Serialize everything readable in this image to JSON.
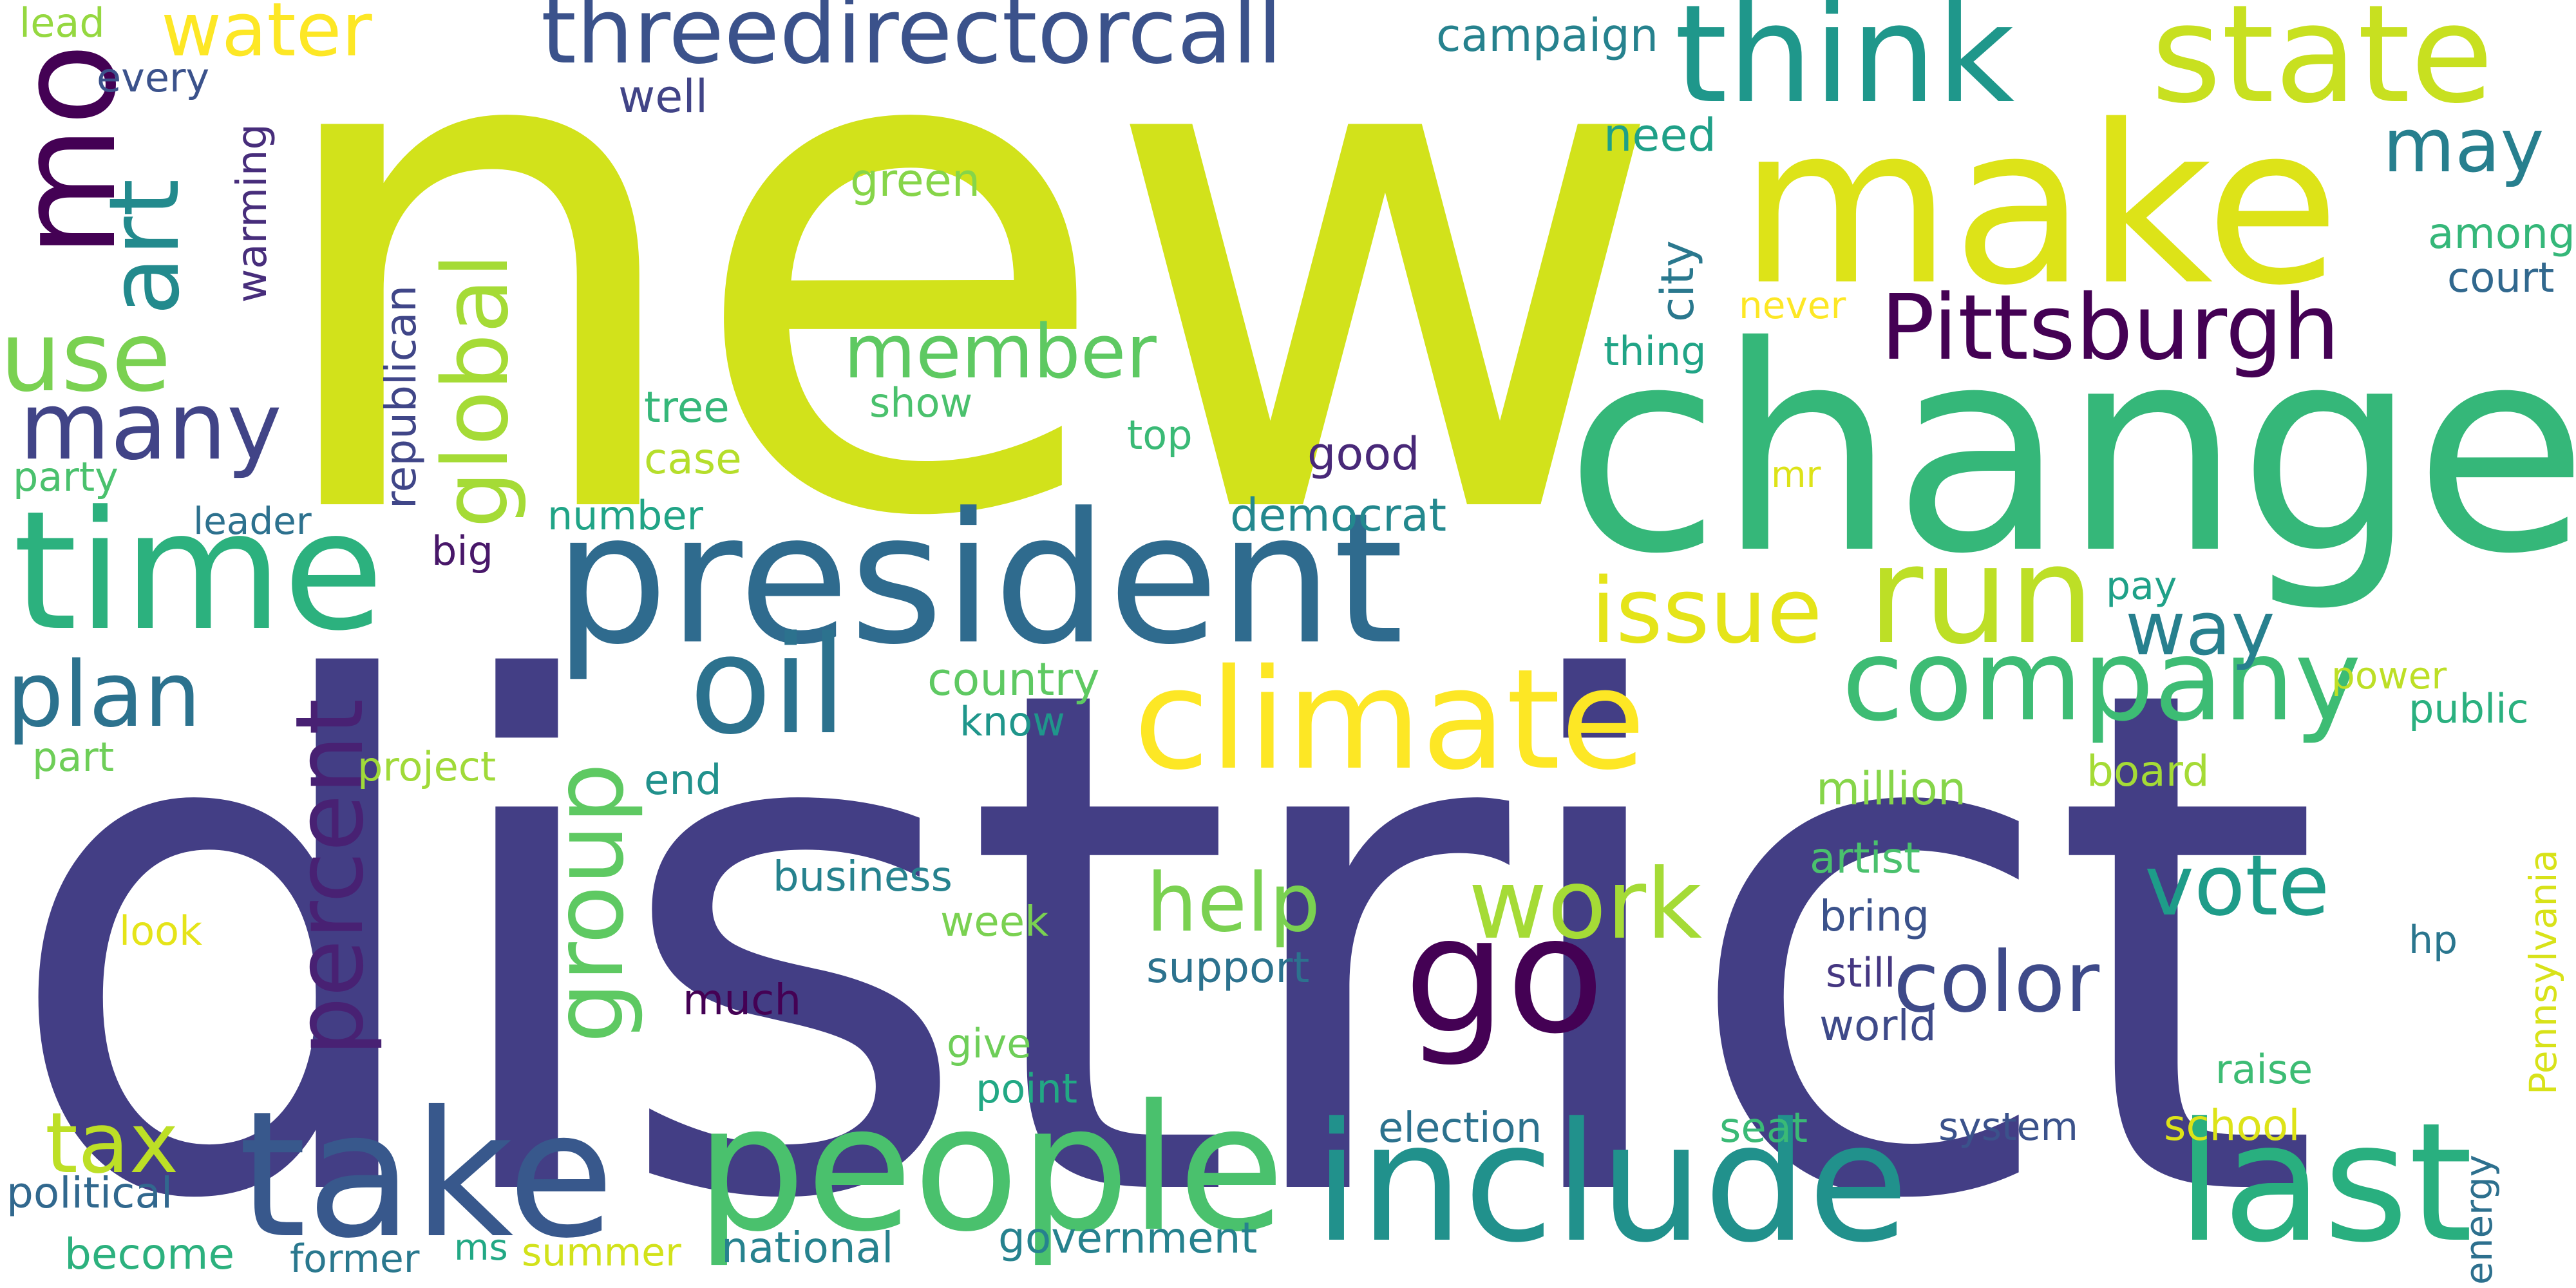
{
  "words": [
    {
      "text": "new",
      "color": "#d2e21b"
    },
    {
      "text": "district",
      "color": "#433e85"
    },
    {
      "text": "change",
      "color": "#35b779"
    },
    {
      "text": "make",
      "color": "#dde318"
    },
    {
      "text": "president",
      "color": "#2f6b8e"
    },
    {
      "text": "time",
      "color": "#2cb17e"
    },
    {
      "text": "take",
      "color": "#38588c"
    },
    {
      "text": "people",
      "color": "#4ac16d"
    },
    {
      "text": "include",
      "color": "#21918c"
    },
    {
      "text": "last",
      "color": "#29af7f"
    },
    {
      "text": "think",
      "color": "#1f978b"
    },
    {
      "text": "state",
      "color": "#c8e020"
    },
    {
      "text": "climate",
      "color": "#fde725"
    },
    {
      "text": "threedirectorcall",
      "color": "#3b528b"
    },
    {
      "text": "mo",
      "color": "#440154"
    },
    {
      "text": "go",
      "color": "#440154"
    },
    {
      "text": "run",
      "color": "#bddf26"
    },
    {
      "text": "oil",
      "color": "#2c728e"
    },
    {
      "text": "Pittsburgh",
      "color": "#440154"
    },
    {
      "text": "company",
      "color": "#3dbc74"
    },
    {
      "text": "art",
      "color": "#238a8d"
    },
    {
      "text": "use",
      "color": "#7ad151"
    },
    {
      "text": "many",
      "color": "#414487"
    },
    {
      "text": "water",
      "color": "#fde725"
    },
    {
      "text": "member",
      "color": "#5ec962"
    },
    {
      "text": "issue",
      "color": "#e5e419"
    },
    {
      "text": "plan",
      "color": "#2c728e"
    },
    {
      "text": "global",
      "color": "#a5db36"
    },
    {
      "text": "group",
      "color": "#5ec962"
    },
    {
      "text": "percent",
      "color": "#482173"
    },
    {
      "text": "work",
      "color": "#a5db36"
    },
    {
      "text": "help",
      "color": "#7ad151"
    },
    {
      "text": "vote",
      "color": "#1e9c89"
    },
    {
      "text": "color",
      "color": "#3e4a89"
    },
    {
      "text": "way",
      "color": "#27808e"
    },
    {
      "text": "may",
      "color": "#277f8e"
    },
    {
      "text": "tax",
      "color": "#bddf26"
    },
    {
      "text": "campaign",
      "color": "#26828e"
    },
    {
      "text": "well",
      "color": "#414487"
    },
    {
      "text": "need",
      "color": "#1fa088"
    },
    {
      "text": "green",
      "color": "#86d549"
    },
    {
      "text": "lead",
      "color": "#95d840"
    },
    {
      "text": "every",
      "color": "#3b528b"
    },
    {
      "text": "warming",
      "color": "#472d7b"
    },
    {
      "text": "republican",
      "color": "#404688"
    },
    {
      "text": "tree",
      "color": "#35b779"
    },
    {
      "text": "case",
      "color": "#b5de2b"
    },
    {
      "text": "show",
      "color": "#4ac16d"
    },
    {
      "text": "top",
      "color": "#3aba76"
    },
    {
      "text": "good",
      "color": "#482878"
    },
    {
      "text": "democrat",
      "color": "#23888e"
    },
    {
      "text": "city",
      "color": "#2a788e"
    },
    {
      "text": "thing",
      "color": "#20a486"
    },
    {
      "text": "never",
      "color": "#fde725"
    },
    {
      "text": "among",
      "color": "#35b779"
    },
    {
      "text": "court",
      "color": "#31688e"
    },
    {
      "text": "party",
      "color": "#4ac16d"
    },
    {
      "text": "leader",
      "color": "#2d718e"
    },
    {
      "text": "big",
      "color": "#481769"
    },
    {
      "text": "number",
      "color": "#20a486"
    },
    {
      "text": "mr",
      "color": "#dde318"
    },
    {
      "text": "pay",
      "color": "#1fa188"
    },
    {
      "text": "country",
      "color": "#5ec962"
    },
    {
      "text": "know",
      "color": "#1f968b"
    },
    {
      "text": "power",
      "color": "#bddf26"
    },
    {
      "text": "public",
      "color": "#2ab07f"
    },
    {
      "text": "part",
      "color": "#6ece58"
    },
    {
      "text": "project",
      "color": "#a0da39"
    },
    {
      "text": "end",
      "color": "#21918c"
    },
    {
      "text": "million",
      "color": "#86d549"
    },
    {
      "text": "board",
      "color": "#a5db36"
    },
    {
      "text": "business",
      "color": "#26828e"
    },
    {
      "text": "artist",
      "color": "#4ac16d"
    },
    {
      "text": "Pennsylvania",
      "color": "#d8e219"
    },
    {
      "text": "look",
      "color": "#e5e419"
    },
    {
      "text": "week",
      "color": "#7ad151"
    },
    {
      "text": "bring",
      "color": "#3b528b"
    },
    {
      "text": "support",
      "color": "#2c728e"
    },
    {
      "text": "still",
      "color": "#453781"
    },
    {
      "text": "hp",
      "color": "#2a768e"
    },
    {
      "text": "much",
      "color": "#440154"
    },
    {
      "text": "world",
      "color": "#3e4a89"
    },
    {
      "text": "give",
      "color": "#6ece58"
    },
    {
      "text": "point",
      "color": "#22a884"
    },
    {
      "text": "raise",
      "color": "#3dbc74"
    },
    {
      "text": "election",
      "color": "#2c728e"
    },
    {
      "text": "seat",
      "color": "#3aba76"
    },
    {
      "text": "system",
      "color": "#3b528b"
    },
    {
      "text": "school",
      "color": "#dde318"
    },
    {
      "text": "political",
      "color": "#31688e"
    },
    {
      "text": "become",
      "color": "#2cb17e"
    },
    {
      "text": "former",
      "color": "#2a788e"
    },
    {
      "text": "ms",
      "color": "#22a884"
    },
    {
      "text": "summer",
      "color": "#d2e21b"
    },
    {
      "text": "national",
      "color": "#26828e"
    },
    {
      "text": "government",
      "color": "#26828e"
    },
    {
      "text": "energy",
      "color": "#2d708e"
    }
  ]
}
